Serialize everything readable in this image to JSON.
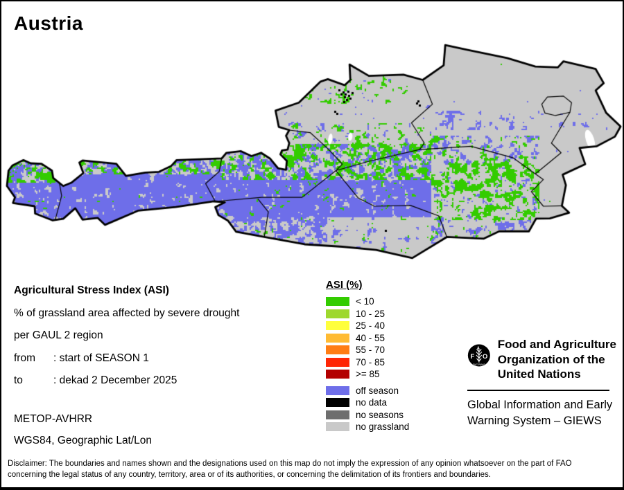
{
  "page": {
    "title": "Austria"
  },
  "info": {
    "heading": "Agricultural Stress Index (ASI)",
    "line1": "% of grassland area affected by severe drought",
    "line2": "per GAUL 2 region",
    "from_label": "from",
    "from_value": ": start of SEASON 1",
    "to_label": "to",
    "to_value": ": dekad 2 December 2025",
    "sensor": "METOP-AVHRR",
    "projection": "WGS84, Geographic Lat/Lon"
  },
  "legend": {
    "title": "ASI (%)",
    "classes": [
      {
        "label": "< 10",
        "color": "#33cc00"
      },
      {
        "label": "10 - 25",
        "color": "#9ed82e"
      },
      {
        "label": "25 - 40",
        "color": "#ffff3d"
      },
      {
        "label": "40 - 55",
        "color": "#ffbb33"
      },
      {
        "label": "55 - 70",
        "color": "#ff7d14"
      },
      {
        "label": "70 - 85",
        "color": "#ff2605"
      },
      {
        "label": ">= 85",
        "color": "#b30000"
      }
    ],
    "extra": [
      {
        "label": "off season",
        "color": "#6e6ee9"
      },
      {
        "label": "no data",
        "color": "#000000"
      },
      {
        "label": "no seasons",
        "color": "#6e6e6e"
      },
      {
        "label": "no grassland",
        "color": "#c9c9c9"
      }
    ]
  },
  "org": {
    "logo_letters": [
      "F",
      "A",
      "O"
    ],
    "logo_motto": "FIAT PANIS",
    "name_lines": [
      "Food and Agriculture",
      "Organization of the",
      "United Nations"
    ],
    "giews": "Global Information and Early Warning System – GIEWS"
  },
  "disclaimer_lines": [
    "Disclaimer: The boundaries and names shown and the designations used on this map do not imply the expression of any opinion whatsoever on the part of FAO",
    "concerning the legal status of any country, territory, area or of its authorities, or concerning the delimitation of its frontiers and boundaries."
  ]
}
